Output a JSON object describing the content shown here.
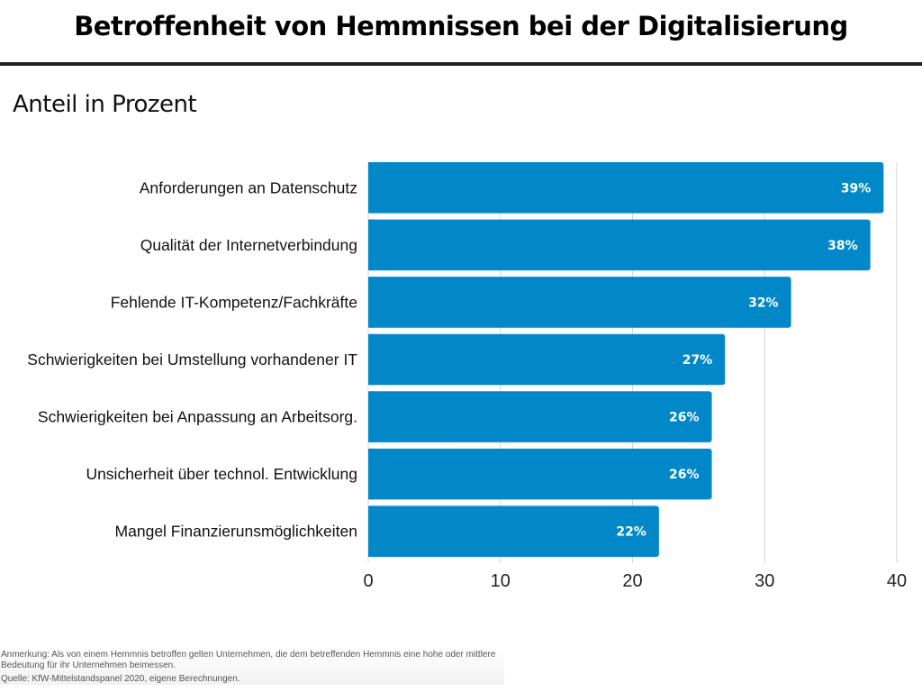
{
  "header": {
    "title": "Betroffenheit von Hemmnissen bei der Digitalisierung",
    "subtitle": "Anteil in Prozent"
  },
  "footer": {
    "note": "Anmerkung: Als von einem Hemmnis betroffen gelten Unternehmen, die dem betreffenden Hemmnis eine hohe oder mittlere Bedeutung für ihr Unternehmen beimessen.",
    "source": "Quelle: KfW-Mittelstandspanel 2020, eigene Berechnungen."
  },
  "chart_data": {
    "type": "bar",
    "orientation": "horizontal",
    "title": "Betroffenheit von Hemmnissen bei der Digitalisierung",
    "subtitle": "Anteil in Prozent",
    "categories": [
      "Anforderungen an Datenschutz",
      "Qualität der Internetverbindung",
      "Fehlende IT-Kompetenz/Fachkräfte",
      "Schwierigkeiten bei Umstellung vorhandener IT",
      "Schwierigkeiten bei Anpassung an Arbeitsorg.",
      "Unsicherheit über technol. Entwicklung",
      "Mangel Finanzierunsmöglichkeiten"
    ],
    "values": [
      39,
      38,
      32,
      27,
      26,
      26,
      22
    ],
    "data_labels": [
      "39%",
      "38%",
      "32%",
      "27%",
      "26%",
      "26%",
      "22%"
    ],
    "xlabel": "",
    "ylabel": "",
    "xlim": [
      0,
      40
    ],
    "xticks": [
      0,
      10,
      20,
      30,
      40
    ],
    "grid": "vertical",
    "legend": "none",
    "bar_color": "#0288c9",
    "label_color": "#ffffff"
  }
}
